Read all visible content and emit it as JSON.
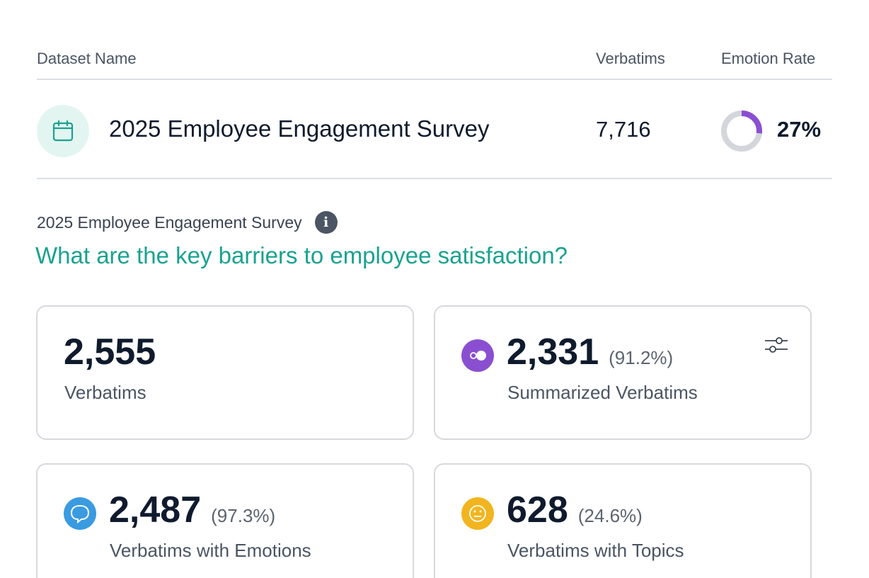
{
  "table": {
    "headers": {
      "name": "Dataset Name",
      "verbatims": "Verbatims",
      "emotion_rate": "Emotion Rate"
    },
    "row": {
      "icon": "calendar-icon",
      "name": "2025 Employee Engagement Survey",
      "verbatims": "7,716",
      "emotion_rate": "27%",
      "emotion_rate_value": 0.27
    }
  },
  "survey": {
    "name": "2025 Employee Engagement Survey",
    "info_icon": "info-icon",
    "question": "What are the key barriers to employee satisfaction?"
  },
  "cards": [
    {
      "value": "2,555",
      "percent": "",
      "label": "Verbatims",
      "icon": ""
    },
    {
      "value": "2,331",
      "percent": "(91.2%)",
      "label": "Summarized Verbatims",
      "icon": "summary-toggle-icon",
      "action_icon": "filter-sliders-icon"
    },
    {
      "value": "2,487",
      "percent": "(97.3%)",
      "label": "Verbatims with Emotions",
      "icon": "speech-bubble-icon"
    },
    {
      "value": "628",
      "percent": "(24.6%)",
      "label": "Verbatims with Topics",
      "icon": "neutral-face-icon"
    }
  ],
  "colors": {
    "accent": "#1aa290",
    "donut_fill": "#8a4fd1",
    "donut_track": "#d3d6da",
    "summary": "#8a4fd1",
    "emotions": "#3a9be0",
    "topics": "#f2b51f"
  }
}
